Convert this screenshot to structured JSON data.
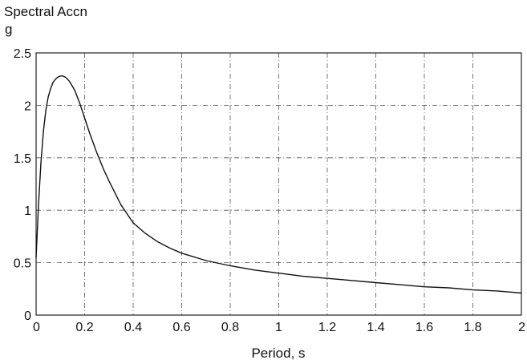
{
  "chart_data": {
    "type": "line",
    "title": "Spectral Accn",
    "ylabel": "g",
    "xlabel": "Period, s",
    "xlim": [
      0,
      2
    ],
    "ylim": [
      0,
      2.5
    ],
    "xticks": [
      "0",
      "0.2",
      "0.4",
      "0.6",
      "0.8",
      "1",
      "1.2",
      "1.4",
      "1.6",
      "1.8",
      "2"
    ],
    "yticks": [
      "0",
      "0.5",
      "1",
      "1.5",
      "2",
      "2.5"
    ],
    "grid": true,
    "series": [
      {
        "x": [
          0,
          0.01,
          0.02,
          0.03,
          0.04,
          0.05,
          0.06,
          0.07,
          0.08,
          0.09,
          0.1,
          0.11,
          0.12,
          0.13,
          0.14,
          0.15,
          0.16,
          0.18,
          0.2,
          0.22,
          0.25,
          0.28,
          0.3,
          0.35,
          0.4,
          0.45,
          0.5,
          0.55,
          0.6,
          0.7,
          0.8,
          0.9,
          1.0,
          1.1,
          1.2,
          1.3,
          1.4,
          1.5,
          1.6,
          1.7,
          1.8,
          1.9,
          2.0
        ],
        "y": [
          0.55,
          1.05,
          1.45,
          1.75,
          1.95,
          2.08,
          2.16,
          2.22,
          2.25,
          2.27,
          2.28,
          2.28,
          2.27,
          2.25,
          2.22,
          2.18,
          2.14,
          2.02,
          1.88,
          1.74,
          1.55,
          1.38,
          1.28,
          1.05,
          0.88,
          0.78,
          0.7,
          0.64,
          0.59,
          0.52,
          0.47,
          0.43,
          0.4,
          0.37,
          0.35,
          0.33,
          0.31,
          0.29,
          0.27,
          0.26,
          0.24,
          0.23,
          0.21
        ]
      }
    ]
  }
}
